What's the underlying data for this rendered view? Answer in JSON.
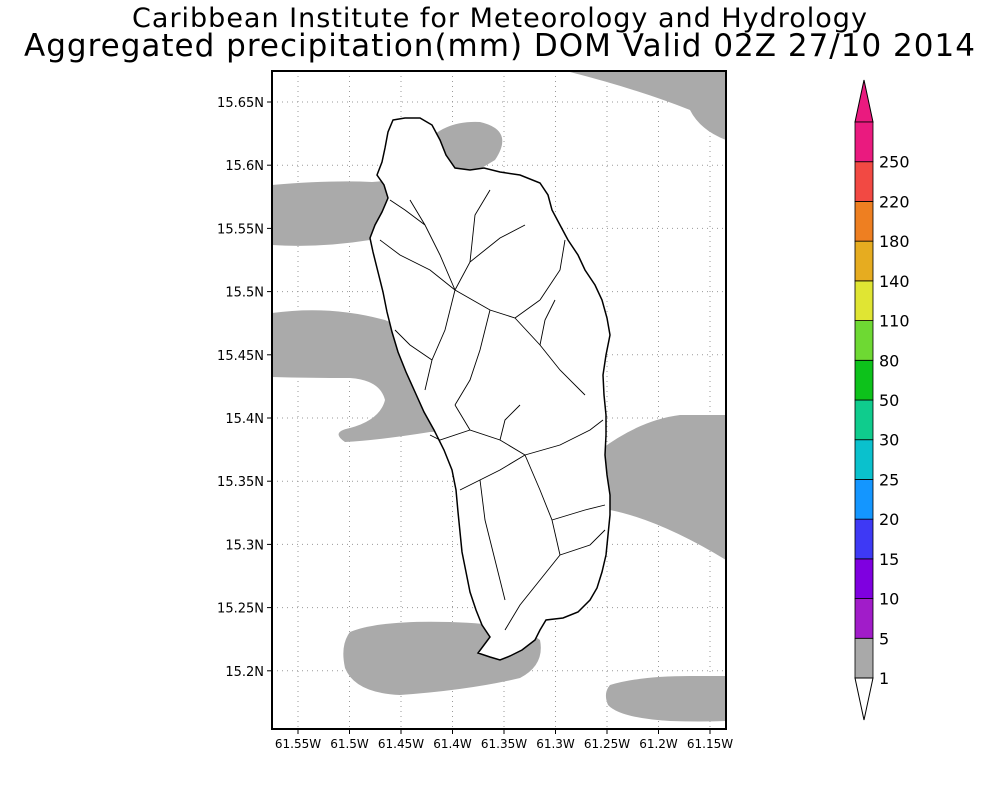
{
  "header": {
    "title": "Caribbean Institute for Meteorology and Hydrology",
    "subtitle": "Aggregated precipitation(mm) DOM Valid 02Z 27/10 2014"
  },
  "map": {
    "lat_ticks": [
      "15.65N",
      "15.6N",
      "15.55N",
      "15.5N",
      "15.45N",
      "15.4N",
      "15.35N",
      "15.3N",
      "15.25N",
      "15.2N"
    ],
    "lon_ticks": [
      "61.55W",
      "61.5W",
      "61.45W",
      "61.4W",
      "61.35W",
      "61.3W",
      "61.25W",
      "61.2W",
      "61.15W"
    ],
    "precip_fill_color": "#aaaaaa",
    "land_fill_color": "#ffffff",
    "coast_color": "#000000"
  },
  "colorbar": {
    "labels": [
      "1",
      "5",
      "10",
      "15",
      "20",
      "25",
      "30",
      "50",
      "80",
      "110",
      "140",
      "180",
      "220",
      "250"
    ],
    "colors": [
      "#a9a9a9",
      "#a11cc9",
      "#7f00e0",
      "#3e39f5",
      "#1496ff",
      "#0ac1cd",
      "#0fcc8d",
      "#0dc21b",
      "#6ed933",
      "#e0e533",
      "#e6ac20",
      "#ee7f21",
      "#f24943",
      "#ea1a7f"
    ]
  }
}
